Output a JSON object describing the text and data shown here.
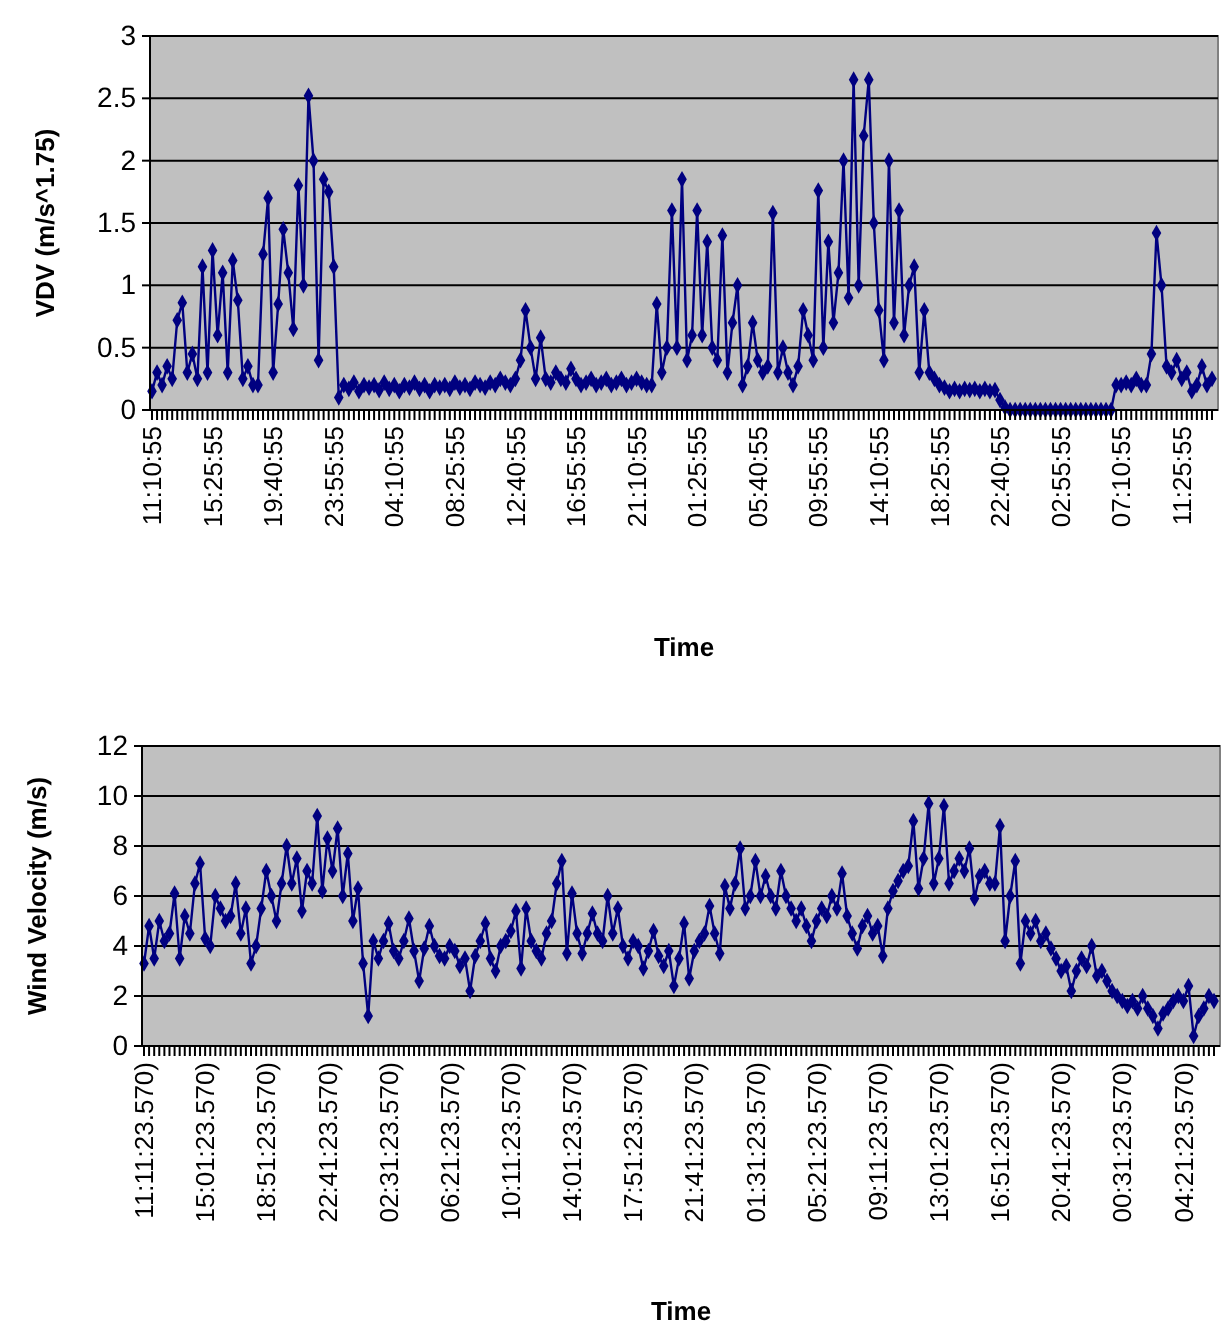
{
  "chart_data": [
    {
      "type": "line",
      "xlabel": "Time",
      "ylabel": "VDV (m/s^1.75)",
      "marker": "diamond",
      "grid": "y",
      "ylim": [
        0,
        3
      ],
      "yticks": [
        0,
        0.5,
        1,
        1.5,
        2,
        2.5,
        3
      ],
      "categories": [
        "11:10:55",
        null,
        null,
        null,
        null,
        null,
        null,
        null,
        null,
        null,
        null,
        null,
        "15:25:55",
        null,
        null,
        null,
        null,
        null,
        null,
        null,
        null,
        null,
        null,
        null,
        "19:40:55",
        null,
        null,
        null,
        null,
        null,
        null,
        null,
        null,
        null,
        null,
        null,
        "23:55:55",
        null,
        null,
        null,
        null,
        null,
        null,
        null,
        null,
        null,
        null,
        null,
        "04:10:55",
        null,
        null,
        null,
        null,
        null,
        null,
        null,
        null,
        null,
        null,
        null,
        "08:25:55",
        null,
        null,
        null,
        null,
        null,
        null,
        null,
        null,
        null,
        null,
        null,
        "12:40:55",
        null,
        null,
        null,
        null,
        null,
        null,
        null,
        null,
        null,
        null,
        null,
        "16:55:55",
        null,
        null,
        null,
        null,
        null,
        null,
        null,
        null,
        null,
        null,
        null,
        "21:10:55",
        null,
        null,
        null,
        null,
        null,
        null,
        null,
        null,
        null,
        null,
        null,
        "01:25:55",
        null,
        null,
        null,
        null,
        null,
        null,
        null,
        null,
        null,
        null,
        null,
        "05:40:55",
        null,
        null,
        null,
        null,
        null,
        null,
        null,
        null,
        null,
        null,
        null,
        "09:55:55",
        null,
        null,
        null,
        null,
        null,
        null,
        null,
        null,
        null,
        null,
        null,
        "14:10:55",
        null,
        null,
        null,
        null,
        null,
        null,
        null,
        null,
        null,
        null,
        null,
        "18:25:55",
        null,
        null,
        null,
        null,
        null,
        null,
        null,
        null,
        null,
        null,
        null,
        "22:40:55",
        null,
        null,
        null,
        null,
        null,
        null,
        null,
        null,
        null,
        null,
        null,
        "02:55:55",
        null,
        null,
        null,
        null,
        null,
        null,
        null,
        null,
        null,
        null,
        null,
        "07:10:55",
        null,
        null,
        null,
        null,
        null,
        null,
        null,
        null,
        null,
        null,
        null,
        "11:25:55",
        null,
        null,
        null,
        null,
        null,
        null
      ],
      "series": [
        {
          "color": "#000080",
          "values": [
            0.15,
            0.3,
            0.2,
            0.35,
            0.25,
            0.72,
            0.86,
            0.3,
            0.45,
            0.25,
            1.15,
            0.3,
            1.28,
            0.6,
            1.1,
            0.3,
            1.2,
            0.88,
            0.25,
            0.35,
            0.2,
            0.2,
            1.25,
            1.7,
            0.3,
            0.85,
            1.45,
            1.1,
            0.65,
            1.8,
            1.0,
            2.52,
            2.0,
            0.4,
            1.85,
            1.75,
            1.15,
            0.1,
            0.2,
            0.17,
            0.22,
            0.15,
            0.2,
            0.18,
            0.2,
            0.16,
            0.22,
            0.17,
            0.2,
            0.15,
            0.2,
            0.18,
            0.22,
            0.17,
            0.2,
            0.15,
            0.2,
            0.18,
            0.2,
            0.17,
            0.22,
            0.18,
            0.2,
            0.17,
            0.22,
            0.2,
            0.18,
            0.22,
            0.2,
            0.25,
            0.22,
            0.2,
            0.25,
            0.4,
            0.8,
            0.5,
            0.25,
            0.58,
            0.25,
            0.22,
            0.3,
            0.25,
            0.22,
            0.33,
            0.25,
            0.2,
            0.22,
            0.25,
            0.2,
            0.22,
            0.25,
            0.2,
            0.22,
            0.25,
            0.2,
            0.22,
            0.25,
            0.22,
            0.2,
            0.2,
            0.85,
            0.3,
            0.5,
            1.6,
            0.5,
            1.85,
            0.4,
            0.6,
            1.6,
            0.6,
            1.35,
            0.5,
            0.4,
            1.4,
            0.3,
            0.7,
            1.0,
            0.2,
            0.35,
            0.7,
            0.4,
            0.3,
            0.35,
            1.58,
            0.3,
            0.5,
            0.3,
            0.2,
            0.35,
            0.8,
            0.6,
            0.4,
            1.76,
            0.5,
            1.35,
            0.7,
            1.1,
            2.0,
            0.9,
            2.65,
            1.0,
            2.2,
            2.65,
            1.5,
            0.8,
            0.4,
            2.0,
            0.7,
            1.6,
            0.6,
            1.0,
            1.15,
            0.3,
            0.8,
            0.3,
            0.25,
            0.2,
            0.18,
            0.15,
            0.17,
            0.15,
            0.17,
            0.16,
            0.17,
            0.15,
            0.17,
            0.15,
            0.16,
            0.08,
            0.02,
            0,
            0,
            0,
            0,
            0,
            0,
            0,
            0,
            0,
            0,
            0,
            0,
            0,
            0,
            0,
            0,
            0,
            0,
            0,
            0,
            0,
            0.2,
            0.2,
            0.22,
            0.2,
            0.25,
            0.2,
            0.2,
            0.45,
            1.42,
            1.0,
            0.35,
            0.3,
            0.4,
            0.25,
            0.3,
            0.15,
            0.2,
            0.35,
            0.2,
            0.25
          ]
        }
      ]
    },
    {
      "type": "line",
      "xlabel": "Time",
      "ylabel": "Wind Velocity (m/s)",
      "marker": "diamond",
      "grid": "y",
      "ylim": [
        0,
        12
      ],
      "yticks": [
        0,
        2,
        4,
        6,
        8,
        10,
        12
      ],
      "categories": [
        "11:11:23.570)",
        null,
        null,
        null,
        null,
        null,
        null,
        null,
        null,
        null,
        null,
        null,
        "15:01:23.570)",
        null,
        null,
        null,
        null,
        null,
        null,
        null,
        null,
        null,
        null,
        null,
        "18:51:23.570)",
        null,
        null,
        null,
        null,
        null,
        null,
        null,
        null,
        null,
        null,
        null,
        "22:41:23.570)",
        null,
        null,
        null,
        null,
        null,
        null,
        null,
        null,
        null,
        null,
        null,
        "02:31:23.570)",
        null,
        null,
        null,
        null,
        null,
        null,
        null,
        null,
        null,
        null,
        null,
        "06:21:23.570)",
        null,
        null,
        null,
        null,
        null,
        null,
        null,
        null,
        null,
        null,
        null,
        "10:11:23.570)",
        null,
        null,
        null,
        null,
        null,
        null,
        null,
        null,
        null,
        null,
        null,
        "14:01:23.570)",
        null,
        null,
        null,
        null,
        null,
        null,
        null,
        null,
        null,
        null,
        null,
        "17:51:23.570)",
        null,
        null,
        null,
        null,
        null,
        null,
        null,
        null,
        null,
        null,
        null,
        "21:41:23.570)",
        null,
        null,
        null,
        null,
        null,
        null,
        null,
        null,
        null,
        null,
        null,
        "01:31:23.570)",
        null,
        null,
        null,
        null,
        null,
        null,
        null,
        null,
        null,
        null,
        null,
        "05:21:23.570)",
        null,
        null,
        null,
        null,
        null,
        null,
        null,
        null,
        null,
        null,
        null,
        "09:11:23.570)",
        null,
        null,
        null,
        null,
        null,
        null,
        null,
        null,
        null,
        null,
        null,
        "13:01:23.570)",
        null,
        null,
        null,
        null,
        null,
        null,
        null,
        null,
        null,
        null,
        null,
        "16:51:23.570)",
        null,
        null,
        null,
        null,
        null,
        null,
        null,
        null,
        null,
        null,
        null,
        "20:41:23.570)",
        null,
        null,
        null,
        null,
        null,
        null,
        null,
        null,
        null,
        null,
        null,
        "00:31:23.570)",
        null,
        null,
        null,
        null,
        null,
        null,
        null,
        null,
        null,
        null,
        null,
        "04:21:23.570)",
        null,
        null,
        null,
        null,
        null,
        null
      ],
      "series": [
        {
          "color": "#000080",
          "values": [
            3.3,
            4.8,
            3.5,
            5.0,
            4.2,
            4.5,
            6.1,
            3.5,
            5.2,
            4.5,
            6.5,
            7.3,
            4.3,
            4.0,
            6.0,
            5.5,
            5.0,
            5.2,
            6.5,
            4.5,
            5.5,
            3.3,
            4.0,
            5.5,
            7.0,
            6.0,
            5.0,
            6.5,
            8.0,
            6.5,
            7.5,
            5.4,
            7.0,
            6.5,
            9.2,
            6.2,
            8.3,
            7.0,
            8.7,
            6.0,
            7.7,
            5.0,
            6.3,
            3.3,
            1.2,
            4.2,
            3.5,
            4.2,
            4.9,
            3.8,
            3.5,
            4.2,
            5.1,
            3.8,
            2.6,
            3.9,
            4.8,
            4.0,
            3.6,
            3.5,
            4.0,
            3.8,
            3.2,
            3.5,
            2.2,
            3.6,
            4.2,
            4.9,
            3.5,
            3.0,
            4.0,
            4.2,
            4.6,
            5.4,
            3.1,
            5.5,
            4.2,
            3.8,
            3.5,
            4.5,
            5.0,
            6.5,
            7.4,
            3.7,
            6.1,
            4.5,
            3.7,
            4.5,
            5.3,
            4.5,
            4.2,
            6.0,
            4.5,
            5.5,
            4.0,
            3.5,
            4.2,
            4.0,
            3.1,
            3.8,
            4.6,
            3.6,
            3.2,
            3.8,
            2.4,
            3.5,
            4.9,
            2.7,
            3.8,
            4.2,
            4.5,
            5.6,
            4.5,
            3.7,
            6.4,
            5.5,
            6.5,
            7.9,
            5.5,
            6.0,
            7.4,
            6.0,
            6.8,
            6.0,
            5.5,
            7.0,
            6.0,
            5.5,
            5.0,
            5.5,
            4.8,
            4.2,
            5.0,
            5.5,
            5.2,
            6.0,
            5.5,
            6.9,
            5.2,
            4.5,
            3.9,
            4.8,
            5.2,
            4.5,
            4.8,
            3.6,
            5.5,
            6.2,
            6.6,
            7.0,
            7.2,
            9.0,
            6.3,
            7.5,
            9.7,
            6.5,
            7.5,
            9.6,
            6.5,
            7.0,
            7.5,
            7.0,
            7.9,
            5.9,
            6.8,
            7.0,
            6.5,
            6.5,
            8.8,
            4.2,
            6.0,
            7.4,
            3.3,
            5.0,
            4.5,
            5.0,
            4.2,
            4.5,
            3.9,
            3.5,
            3.0,
            3.2,
            2.2,
            3.0,
            3.5,
            3.2,
            4.0,
            2.8,
            3.0,
            2.6,
            2.2,
            2.0,
            1.8,
            1.6,
            1.8,
            1.5,
            2.0,
            1.5,
            1.2,
            0.7,
            1.3,
            1.5,
            1.8,
            2.0,
            1.8,
            2.4,
            0.4,
            1.2,
            1.5,
            2.0,
            1.8
          ]
        }
      ]
    }
  ]
}
